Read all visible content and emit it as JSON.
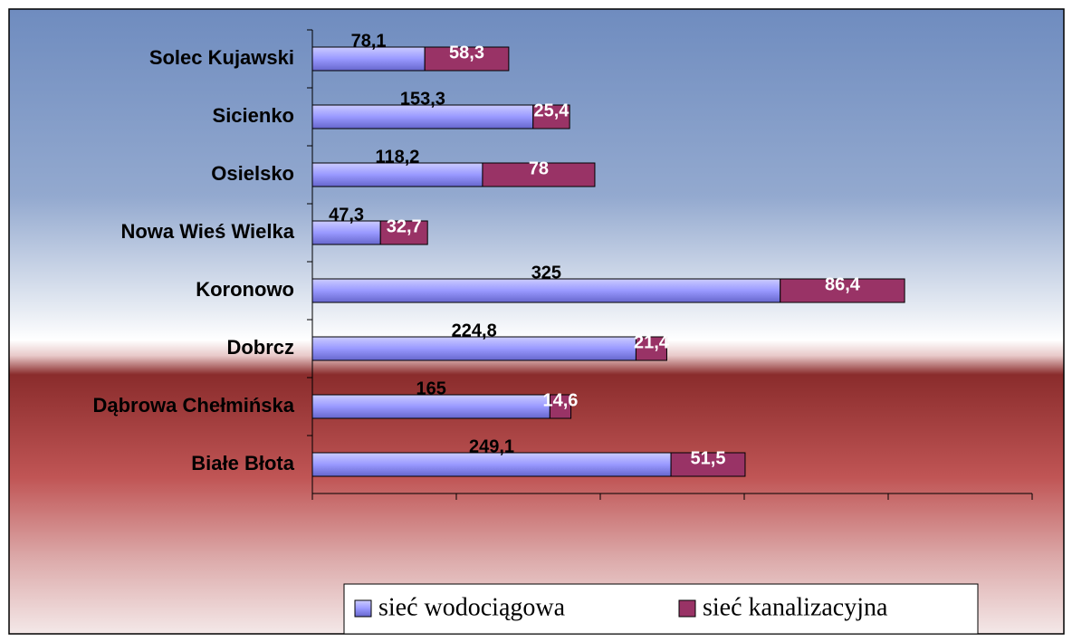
{
  "chart_data": {
    "type": "bar",
    "orientation": "horizontal",
    "stacked": true,
    "categories": [
      "Solec Kujawski",
      "Sicienko",
      "Osielsko",
      "Nowa Wieś Wielka",
      "Koronowo",
      "Dobrcz",
      "Dąbrowa Chełmińska",
      "Białe Błota"
    ],
    "series": [
      {
        "name": "sieć wodociągowa",
        "color": "#9999ff",
        "values": [
          78.1,
          153.3,
          118.2,
          47.3,
          325,
          224.8,
          165,
          249.1
        ],
        "value_labels": [
          "78,1",
          "153,3",
          "118,2",
          "47,3",
          "325",
          "224,8",
          "165",
          "249,1"
        ]
      },
      {
        "name": "sieć kanalizacyjna",
        "color": "#993366",
        "values": [
          58.3,
          25.4,
          78,
          32.7,
          86.4,
          21.4,
          14.6,
          51.5
        ],
        "value_labels": [
          "58,3",
          "25,4",
          "78",
          "32,7",
          "86,4",
          "21,4",
          "14,6",
          "51,5"
        ]
      }
    ],
    "xlim": [
      0,
      500
    ],
    "xticks": [
      0,
      100,
      200,
      300,
      400,
      500
    ]
  }
}
